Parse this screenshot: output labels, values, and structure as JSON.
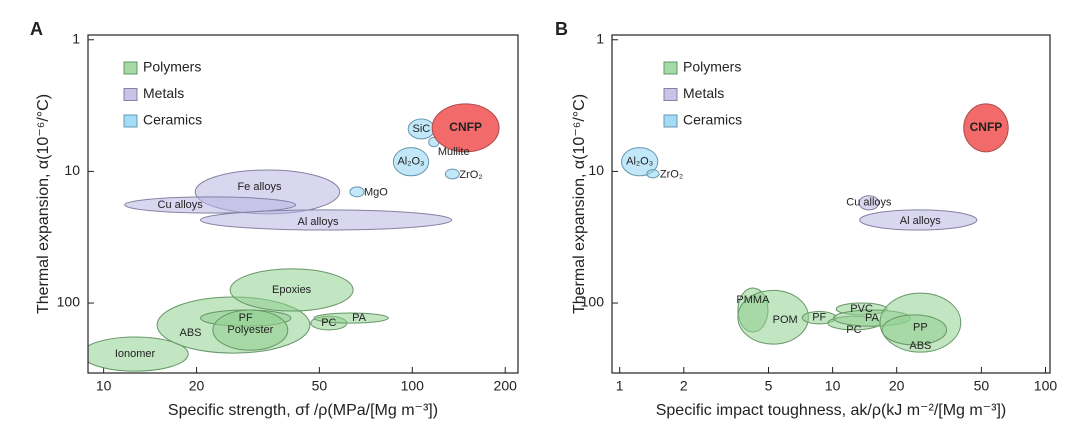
{
  "chart_data": [
    {
      "type": "ellipse",
      "panel": "A",
      "x_label": "Specific strength, σf /ρ(MPa/[Mg m⁻³])",
      "y_label": "Thermal expansion, α(10⁻⁶/°C)",
      "x_log": true,
      "y_log": true,
      "y_inverted": true,
      "xlim": [
        8.9,
        220
      ],
      "xticks": [
        10,
        20,
        50,
        100,
        200
      ],
      "ylim": [
        0.92,
        340
      ],
      "yticks": [
        1,
        10,
        100
      ],
      "series": [
        {
          "name": "Polymers",
          "color": "#8fd08f",
          "items": [
            "Ionomer",
            "ABS",
            "Epoxies",
            "PF",
            "Polyester",
            "PC",
            "PA"
          ],
          "x_ranges": [
            [
              8.5,
              18.8
            ],
            [
              14.9,
              46.6
            ],
            [
              25.7,
              64.3
            ],
            [
              20.6,
              40.4
            ],
            [
              22.6,
              39.5
            ],
            [
              46.9,
              61.4
            ],
            [
              48,
              83.6
            ]
          ],
          "y_ranges": [
            [
              181,
              329
            ],
            [
              90,
              240
            ],
            [
              55,
              115
            ],
            [
              113,
              150
            ],
            [
              113,
              228
            ],
            [
              126,
              160
            ],
            [
              119,
              142
            ]
          ]
        },
        {
          "name": "Metals",
          "color": "#b9b5e2",
          "items": [
            "Fe alloys",
            "Cu alloys",
            "Al alloys"
          ],
          "x_ranges": [
            [
              19.8,
              58.2
            ],
            [
              11.7,
              41.9
            ],
            [
              20.6,
              134
            ]
          ],
          "y_ranges": [
            [
              9.75,
              21
            ],
            [
              15.6,
              20.7
            ],
            [
              19.6,
              27.9
            ]
          ]
        },
        {
          "name": "Ceramics",
          "color": "#8fd3f3",
          "items": [
            "SiC",
            "Mullite",
            "Al₂O₃",
            "ZrO₂",
            "MgO"
          ],
          "x_ranges": [
            [
              97,
              118
            ],
            [
              113,
              122
            ],
            [
              86.8,
              113
            ],
            [
              128,
              142
            ],
            [
              62.8,
              69.8
            ]
          ],
          "y_ranges": [
            [
              4.0,
              5.66
            ],
            [
              5.5,
              6.5
            ],
            [
              6.6,
              10.8
            ],
            [
              9.6,
              11.4
            ],
            [
              13.1,
              15.6
            ]
          ]
        }
      ],
      "highlight": {
        "label": "CNFP",
        "color": "#f26a6a",
        "x_range": [
          116,
          191
        ],
        "y_range": [
          3.07,
          7.1
        ]
      }
    },
    {
      "type": "ellipse",
      "panel": "B",
      "x_label": "Specific impact toughness, ak/ρ(kJ m⁻²/[Mg m⁻³])",
      "y_label": "Thermal expansion, α(10⁻⁶/°C)",
      "x_log": true,
      "y_log": true,
      "y_inverted": true,
      "xlim": [
        0.92,
        105
      ],
      "xticks": [
        1,
        2,
        5,
        10,
        20,
        50,
        100
      ],
      "ylim": [
        0.92,
        340
      ],
      "yticks": [
        1,
        10,
        100
      ],
      "series": [
        {
          "name": "Polymers",
          "color": "#8fd08f",
          "items": [
            "PMMA",
            "POM",
            "PF",
            "PVC",
            "PC",
            "PA",
            "PP",
            "ABS"
          ],
          "x_ranges": [
            [
              3.59,
              4.97
            ],
            [
              3.59,
              7.7
            ],
            [
              7.2,
              10.4
            ],
            [
              10.4,
              18
            ],
            [
              9.5,
              16.7
            ],
            [
              10.1,
              23.2
            ],
            [
              16.7,
              40
            ],
            [
              17.1,
              34.3
            ]
          ],
          "y_ranges": [
            [
              76.9,
              166
            ],
            [
              80.2,
              205
            ],
            [
              116,
              144
            ],
            [
              100,
              123
            ],
            [
              126,
              160
            ],
            [
              113,
              150
            ],
            [
              84,
              236
            ],
            [
              123,
              208
            ]
          ]
        },
        {
          "name": "Metals",
          "color": "#b9b5e2",
          "items": [
            "Cu alloys",
            "Al alloys"
          ],
          "x_ranges": [
            [
              13.3,
              16.5
            ],
            [
              13.4,
              47.6
            ]
          ],
          "y_ranges": [
            [
              15.3,
              19.6
            ],
            [
              19.6,
              27.9
            ]
          ]
        },
        {
          "name": "Ceramics",
          "color": "#8fd3f3",
          "items": [
            "Al₂O₃",
            "ZrO₂"
          ],
          "x_ranges": [
            [
              1.02,
              1.51
            ],
            [
              1.34,
              1.53
            ]
          ],
          "y_ranges": [
            [
              6.6,
              10.8
            ],
            [
              9.7,
              11.2
            ]
          ]
        }
      ],
      "highlight": {
        "label": "CNFP",
        "color": "#f26a6a",
        "x_range": [
          41.3,
          66.8
        ],
        "y_range": [
          3.07,
          7.1
        ]
      }
    }
  ]
}
